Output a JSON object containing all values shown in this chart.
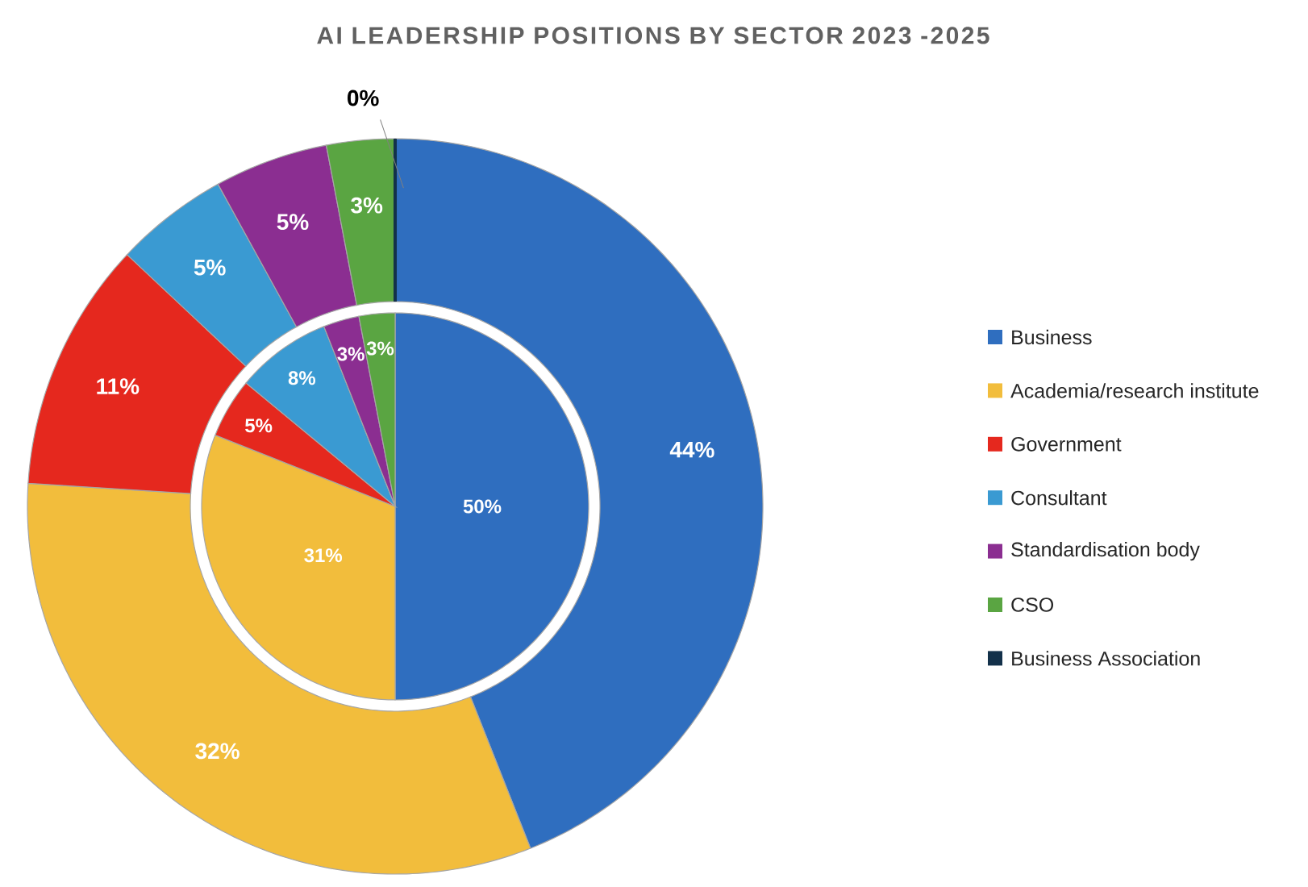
{
  "chart_data": {
    "type": "pie",
    "title": "AI LEADERSHIP POSITIONS BY SECTOR 2023 -2025",
    "categories": [
      "Business",
      "Academia/research institute",
      "Government",
      "Consultant",
      "Standardisation body",
      "CSO",
      "Business Association"
    ],
    "colors": [
      "#2f6ebf",
      "#f2bd3c",
      "#e5281e",
      "#3a9ad2",
      "#8b2e91",
      "#5aa542",
      "#13314a"
    ],
    "legend": "right",
    "series": [
      {
        "type": "pie",
        "values": [
          50,
          31,
          5,
          8,
          3,
          3,
          0
        ],
        "value_labels": [
          "50%",
          "31%",
          "5%",
          "8%",
          "3%",
          "3%",
          null
        ]
      },
      {
        "type": "donut",
        "values": [
          44,
          32,
          11,
          5,
          5,
          3,
          0
        ],
        "value_labels": [
          "44%",
          "32%",
          "11%",
          "5%",
          "5%",
          "3%",
          "0%"
        ]
      }
    ]
  }
}
